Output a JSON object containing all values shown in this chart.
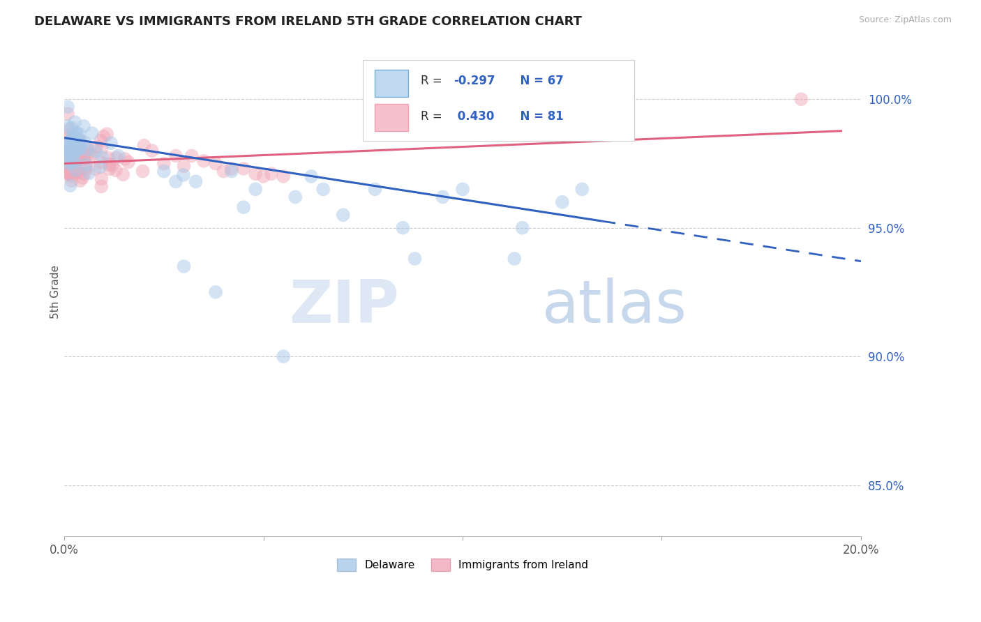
{
  "title": "DELAWARE VS IMMIGRANTS FROM IRELAND 5TH GRADE CORRELATION CHART",
  "source": "Source: ZipAtlas.com",
  "ylabel": "5th Grade",
  "yticks_right": [
    85.0,
    90.0,
    95.0,
    100.0
  ],
  "xlim": [
    0.0,
    20.0
  ],
  "ylim": [
    83.0,
    102.0
  ],
  "delaware_color": "#a8c8e8",
  "ireland_color": "#f0a8b8",
  "trendline_blue_color": "#3060c0",
  "trendline_pink_color": "#e06080",
  "background_color": "#ffffff",
  "blue_trend_x0": 0.0,
  "blue_trend_y0": 98.5,
  "blue_trend_slope": -0.24,
  "blue_solid_end": 13.5,
  "pink_trend_x0": 0.0,
  "pink_trend_y0": 97.5,
  "pink_trend_slope": 0.065,
  "pink_trend_end": 19.5,
  "ireland_outlier_x": 18.5,
  "ireland_outlier_y": 100.0,
  "delaware_low1_x": 3.0,
  "delaware_low1_y": 93.5,
  "delaware_low2_x": 3.8,
  "delaware_low2_y": 92.5,
  "delaware_low3_x": 5.5,
  "delaware_low3_y": 90.0,
  "delaware_far1_x": 8.5,
  "delaware_far1_y": 95.0,
  "delaware_far2_x": 11.5,
  "delaware_far2_y": 95.0,
  "delaware_far3_x": 6.5,
  "delaware_far3_y": 96.5,
  "delaware_mid1_x": 8.8,
  "delaware_mid1_y": 93.8,
  "delaware_mid2_x": 11.3,
  "delaware_mid2_y": 93.8
}
